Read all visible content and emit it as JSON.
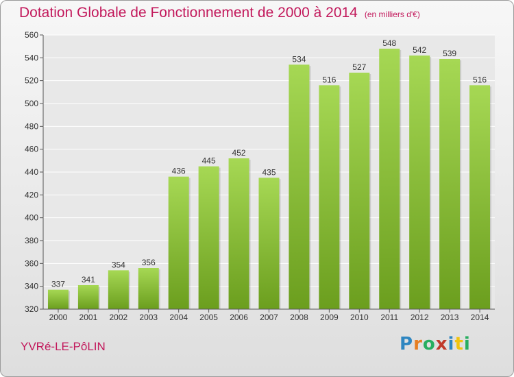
{
  "chart_title": "Dotation Globale de Fonctionnement de 2000 à 2014",
  "chart_subtitle": "(en milliers d'€)",
  "town_name": "YVRé-LE-PôLIN",
  "brand": {
    "letters": [
      "P",
      "r",
      "o",
      "x",
      "i",
      "t",
      "i"
    ],
    "colors": [
      "#2e86c1",
      "#e67e22",
      "#27ae60",
      "#c0392b",
      "#2e86c1",
      "#f1c40f",
      "#27ae60"
    ]
  },
  "colors": {
    "bar_light": "#a6d854",
    "bar_dark": "#6b9e1e",
    "title": "#c2185b",
    "grid": "#ffffff"
  },
  "chart_data": {
    "type": "bar",
    "categories": [
      "2000",
      "2001",
      "2002",
      "2003",
      "2004",
      "2005",
      "2006",
      "2007",
      "2008",
      "2009",
      "2010",
      "2011",
      "2012",
      "2013",
      "2014"
    ],
    "values": [
      337,
      341,
      354,
      356,
      436,
      445,
      452,
      435,
      534,
      516,
      527,
      548,
      542,
      539,
      516
    ],
    "ylim": [
      320,
      560
    ],
    "yticks": [
      320,
      340,
      360,
      380,
      400,
      420,
      440,
      460,
      480,
      500,
      520,
      540,
      560
    ],
    "grid": true,
    "data_labels": true
  }
}
